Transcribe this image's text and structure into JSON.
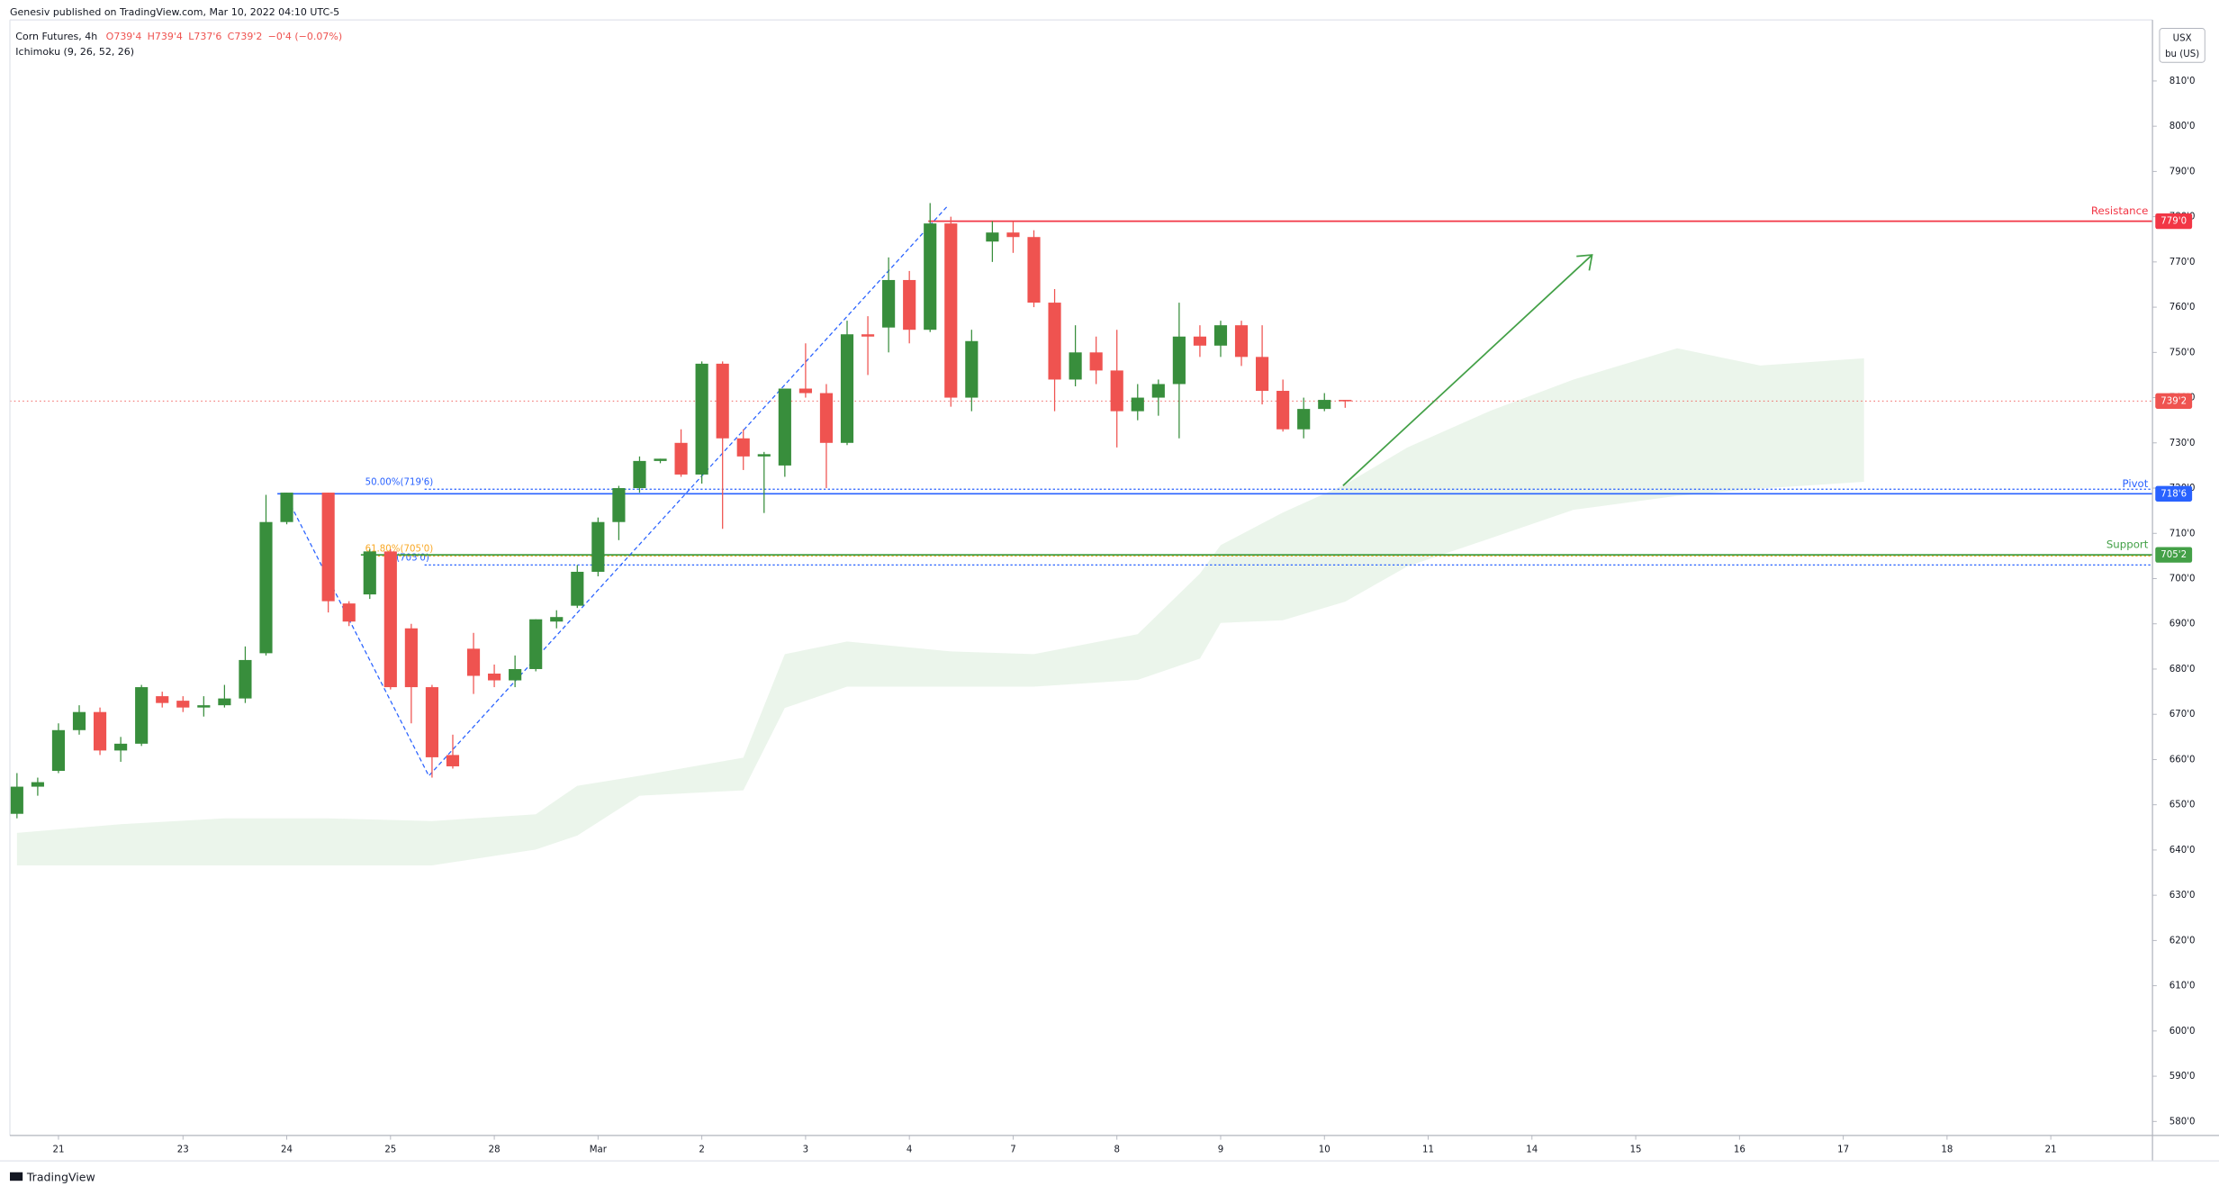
{
  "chart_data": {
    "type": "candlestick",
    "publisher": "Genesiv published on TradingView.com, Mar 10, 2022 04:10 UTC-5",
    "title": "Corn Futures, 4h",
    "ohlc_legend": [
      "O739'4",
      "H739'4",
      "L737'6",
      "C739'2",
      "−0'4 (−0.07%)"
    ],
    "indicator": "Ichimoku (9, 26, 52, 26)",
    "currency": "USX",
    "unit": "bu (US)",
    "brand": "TradingView",
    "up_color": "#388e3c",
    "down_color": "#ef5350",
    "cloud_color": "#e8f3e8",
    "x": [
      0,
      1,
      2,
      3,
      4,
      5,
      6,
      7,
      8,
      9,
      10,
      11,
      12,
      13,
      15,
      16,
      17,
      18,
      19,
      20,
      21,
      22,
      23,
      24,
      25,
      26,
      27,
      28,
      29,
      30,
      31,
      32,
      33,
      34,
      35,
      36,
      37,
      38,
      39,
      40,
      41,
      42,
      43,
      44,
      45,
      46,
      47,
      48,
      49,
      50,
      51,
      52,
      53,
      54,
      55,
      56,
      57,
      58,
      59,
      60,
      61,
      62,
      63,
      64
    ],
    "open": [
      648,
      654,
      657.5,
      666.5,
      670.5,
      662,
      663.5,
      674,
      673,
      671.5,
      672,
      673.5,
      683.5,
      712.5,
      719,
      694.5,
      696.5,
      706,
      689,
      676,
      661,
      684.5,
      679,
      677.5,
      680,
      690.5,
      694,
      701.5,
      712.5,
      720,
      726,
      730,
      723,
      747.5,
      731,
      727,
      725,
      742,
      741,
      730,
      754,
      755.5,
      766,
      755,
      778.5,
      740,
      774.5,
      776.5,
      775.5,
      761,
      744,
      750,
      746,
      737,
      740,
      743,
      753.5,
      751.5,
      756,
      749,
      741.5,
      733,
      737.5,
      739.5
    ],
    "high": [
      657,
      656,
      668,
      672,
      671.5,
      665,
      676.5,
      675,
      674,
      674,
      676.5,
      685,
      718.5,
      719,
      719,
      695,
      706.5,
      706.5,
      690,
      676.5,
      665.5,
      688,
      681,
      683,
      691,
      693,
      703,
      713.5,
      720.5,
      727,
      726.5,
      733,
      748,
      748,
      733,
      728,
      742,
      752,
      743,
      757,
      758,
      771,
      768,
      783,
      780,
      755,
      779,
      779,
      777,
      764,
      756,
      753.5,
      755,
      743,
      744,
      761,
      756,
      757,
      757,
      756,
      744,
      740,
      741,
      739.5
    ],
    "low": [
      647,
      652,
      657,
      665.5,
      661,
      659.5,
      663,
      671.5,
      670.5,
      669.5,
      671.5,
      672.5,
      683,
      712,
      692.5,
      689.5,
      695.5,
      675.5,
      668,
      656,
      658,
      674.5,
      676,
      676,
      679.5,
      689,
      693.5,
      700.5,
      708.5,
      719,
      725.5,
      722.5,
      721,
      711,
      724,
      714.5,
      722.5,
      740,
      720,
      729.5,
      745,
      750,
      752,
      754.5,
      738,
      737,
      770,
      772,
      760,
      737,
      742.5,
      743,
      729,
      735,
      736,
      731,
      749,
      749,
      747,
      738.5,
      732.5,
      731,
      737,
      737.75
    ],
    "close": [
      654,
      655,
      666.5,
      670.5,
      662,
      663.5,
      676,
      672.5,
      671.5,
      672,
      673.5,
      682,
      712.5,
      719,
      695,
      690.5,
      706,
      676,
      676,
      660.5,
      658.5,
      678.5,
      677.5,
      680,
      691,
      691.5,
      701.5,
      712.5,
      720,
      726,
      726.5,
      723,
      747.5,
      731,
      727,
      727.5,
      742,
      741,
      730,
      754,
      753.5,
      766,
      755,
      778.5,
      740,
      752.5,
      776.5,
      775.5,
      761,
      744,
      750,
      746,
      737,
      740,
      743,
      753.5,
      751.5,
      756,
      749,
      741.5,
      733,
      737.5,
      739.5,
      739.25
    ],
    "cloud": {
      "x": [
        0,
        5,
        10,
        15,
        20,
        25,
        27,
        30,
        35,
        37,
        40,
        45,
        49,
        54,
        57,
        58,
        61,
        64,
        67,
        71,
        75,
        80,
        84,
        89
      ],
      "upper": [
        643.8,
        645.7,
        647.0,
        647.0,
        646.4,
        647.9,
        654.2,
        656.4,
        660.4,
        683.3,
        686.1,
        683.9,
        683.3,
        687.7,
        701.1,
        707.4,
        714.6,
        720.8,
        729.0,
        737.1,
        744.0,
        750.9,
        747.1,
        748.7
      ],
      "lower": [
        636.6,
        636.6,
        636.6,
        636.6,
        636.6,
        640.1,
        643.2,
        652.0,
        653.2,
        671.4,
        676.1,
        676.1,
        676.1,
        677.6,
        682.3,
        690.2,
        690.8,
        694.9,
        702.7,
        708.9,
        715.2,
        718.3,
        719.9,
        721.4
      ]
    },
    "levels": [
      {
        "name": "Resistance",
        "value": 779,
        "label": "779'0",
        "color": "#f23645"
      },
      {
        "name": "Pivot",
        "value": 718.75,
        "label": "718'6",
        "color": "#2962ff"
      },
      {
        "name": "Support",
        "value": 705.25,
        "label": "705'2",
        "color": "#43a047"
      }
    ],
    "fib_levels": [
      {
        "value": 719.75,
        "label": "50.00%(719'6)",
        "color": "#2962ff"
      },
      {
        "value": 705,
        "label": "61.80%(705'0)",
        "color": "#f9a825"
      },
      {
        "value": 703,
        "label": "(703'0)",
        "color": "#2962ff"
      }
    ],
    "current": {
      "value": 739.25,
      "label": "739'2",
      "color": "#ef5350"
    },
    "xlim": [
      -0.34,
      102.9
    ],
    "ylim": [
      576.9,
      823.5
    ],
    "xticks": [
      {
        "value": 2,
        "label": "21"
      },
      {
        "value": 8,
        "label": "23"
      },
      {
        "value": 13,
        "label": "24"
      },
      {
        "value": 18,
        "label": "25"
      },
      {
        "value": 23,
        "label": "28"
      },
      {
        "value": 28,
        "label": "Mar"
      },
      {
        "value": 33,
        "label": "2"
      },
      {
        "value": 38,
        "label": "3"
      },
      {
        "value": 43,
        "label": "4"
      },
      {
        "value": 48,
        "label": "7"
      },
      {
        "value": 53,
        "label": "8"
      },
      {
        "value": 58,
        "label": "9"
      },
      {
        "value": 63,
        "label": "10"
      },
      {
        "value": 68,
        "label": "11"
      },
      {
        "value": 73,
        "label": "14"
      },
      {
        "value": 78,
        "label": "15"
      },
      {
        "value": 83,
        "label": "16"
      },
      {
        "value": 88,
        "label": "17"
      },
      {
        "value": 93,
        "label": "18"
      },
      {
        "value": 98,
        "label": "21"
      }
    ],
    "yticks": [
      {
        "value": 580,
        "label": "580'0"
      },
      {
        "value": 590,
        "label": "590'0"
      },
      {
        "value": 600,
        "label": "600'0"
      },
      {
        "value": 610,
        "label": "610'0"
      },
      {
        "value": 620,
        "label": "620'0"
      },
      {
        "value": 630,
        "label": "630'0"
      },
      {
        "value": 640,
        "label": "640'0"
      },
      {
        "value": 650,
        "label": "650'0"
      },
      {
        "value": 660,
        "label": "660'0"
      },
      {
        "value": 670,
        "label": "670'0"
      },
      {
        "value": 680,
        "label": "680'0"
      },
      {
        "value": 690,
        "label": "690'0"
      },
      {
        "value": 700,
        "label": "700'0"
      },
      {
        "value": 710,
        "label": "710'0"
      },
      {
        "value": 720,
        "label": "720'0"
      },
      {
        "value": 730,
        "label": "730'0"
      },
      {
        "value": 740,
        "label": "740'0"
      },
      {
        "value": 750,
        "label": "750'0"
      },
      {
        "value": 760,
        "label": "760'0"
      },
      {
        "value": 770,
        "label": "770'0"
      },
      {
        "value": 780,
        "label": "780'0"
      },
      {
        "value": 790,
        "label": "790'0"
      },
      {
        "value": 800,
        "label": "800'0"
      },
      {
        "value": 810,
        "label": "810'0"
      }
    ],
    "grid": false
  }
}
